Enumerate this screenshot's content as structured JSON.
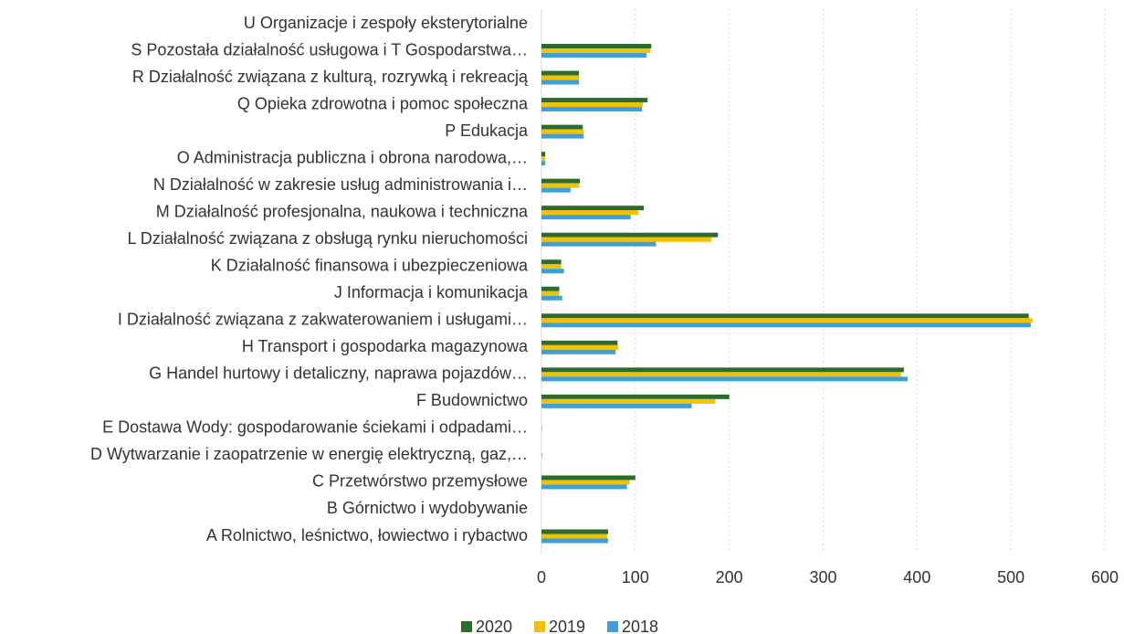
{
  "chart_data": {
    "type": "barh",
    "categories": [
      "A Rolnictwo, leśnictwo, łowiectwo i rybactwo",
      "B Górnictwo i wydobywanie",
      "C Przetwórstwo przemysłowe",
      "D Wytwarzanie i zaopatrzenie w energię elektryczną, gaz,…",
      "E Dostawa Wody: gospodarowanie ściekami i odpadami…",
      "F Budownictwo",
      "G Handel hurtowy i detaliczny, naprawa pojazdów…",
      "H Transport i gospodarka magazynowa",
      "I Działalność związana z zakwaterowaniem i usługami…",
      "J Informacja i komunikacja",
      "K Działalność finansowa i ubezpieczeniowa",
      "L Działalność związana z obsługą rynku nieruchomości",
      "M Działalność profesjonalna, naukowa i techniczna",
      "N Działalność w zakresie usług administrowania i…",
      "O Administracja publiczna i obrona narodowa,…",
      "P Edukacja",
      "Q Opieka zdrowotna i pomoc społeczna",
      "R Działalność związana z kulturą, rozrywką i rekreacją",
      "S Pozostała działalność usługowa i T Gospodarstwa…",
      "U Organizacje i zespoły eksterytorialne"
    ],
    "series": [
      {
        "name": "2020",
        "color": "#2e6b2e",
        "values": [
          71,
          0,
          100,
          0,
          0,
          200,
          386,
          81,
          519,
          19,
          21,
          188,
          109,
          41,
          4,
          44,
          113,
          40,
          117,
          0
        ]
      },
      {
        "name": "2019",
        "color": "#f2c200",
        "values": [
          70,
          0,
          94,
          1,
          1,
          185,
          383,
          82,
          523,
          19,
          21,
          181,
          103,
          40,
          4,
          45,
          108,
          40,
          116,
          0
        ]
      },
      {
        "name": "2018",
        "color": "#3ea0d8",
        "values": [
          71,
          0,
          91,
          0,
          0,
          160,
          390,
          79,
          521,
          22,
          24,
          122,
          95,
          31,
          4,
          45,
          107,
          40,
          112,
          0
        ]
      }
    ],
    "xlim": [
      0,
      600
    ],
    "xticks": [
      0,
      100,
      200,
      300,
      400,
      500,
      600
    ],
    "grid": true,
    "legend": "bottom"
  }
}
